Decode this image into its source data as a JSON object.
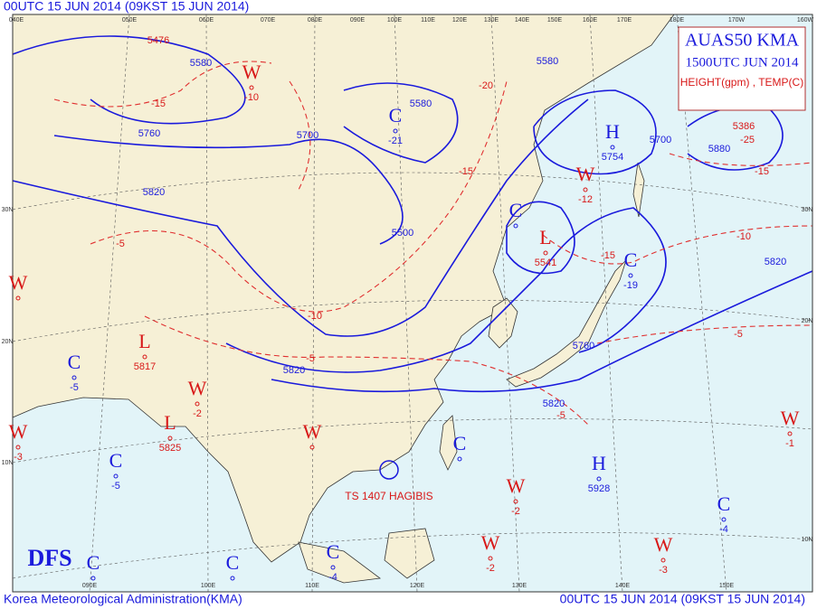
{
  "header": {
    "time": "00UTC 15 JUN 2014 (09KST 15 JUN 2014)"
  },
  "title_box": {
    "title": "AUAS50 KMA",
    "valid": "1500UTC JUN 2014",
    "fields": "HEIGHT(gpm) , TEMP(C)"
  },
  "footer": {
    "agency": "Korea Meteorological Administration(KMA)",
    "time": "00UTC 15 JUN 2014 (09KST 15 JUN 2014)"
  },
  "logo": "DFS",
  "typhoon": "TS 1407 HAGIBIS",
  "centers": [
    {
      "label": "W",
      "value": "-10"
    },
    {
      "label": "C",
      "value": "-21"
    },
    {
      "label": "H",
      "value": "5754"
    },
    {
      "label": "W",
      "value": "-12"
    },
    {
      "label": "C"
    },
    {
      "label": "L",
      "value": "5541"
    },
    {
      "label": "C",
      "value": "-19"
    },
    {
      "label": "L",
      "value": "5817"
    },
    {
      "label": "C",
      "value": "-5"
    },
    {
      "label": "W",
      "value": "-2"
    },
    {
      "label": "L",
      "value": "5825"
    },
    {
      "label": "W",
      "value": "-3"
    },
    {
      "label": "W"
    },
    {
      "label": "C",
      "value": "-5"
    },
    {
      "label": "C"
    },
    {
      "label": "H",
      "value": "5928"
    },
    {
      "label": "W",
      "value": "-2"
    },
    {
      "label": "C",
      "value": "-4"
    },
    {
      "label": "W",
      "value": "-1"
    },
    {
      "label": "W",
      "value": "-2"
    },
    {
      "label": "C",
      "value": "-4"
    },
    {
      "label": "W",
      "value": "-3"
    },
    {
      "label": "W"
    },
    {
      "label": "C"
    },
    {
      "label": "C"
    }
  ],
  "height_contour_labels": [
    "5476",
    "5580",
    "5760",
    "5820",
    "5700",
    "5580",
    "5580",
    "5700",
    "5880",
    "5500",
    "5820",
    "5760",
    "5820",
    "5820",
    "5386"
  ],
  "temp_contour_labels": [
    "-15",
    "-15",
    "-10",
    "-5",
    "-5",
    "-10",
    "-5",
    "-5",
    "-15",
    "-25",
    "-20",
    "-15"
  ],
  "longitude_labels_top": [
    "040E",
    "050E",
    "060E",
    "070E",
    "080E",
    "090E",
    "100E",
    "110E",
    "120E",
    "130E",
    "140E",
    "150E",
    "160E",
    "170E",
    "180E",
    "170W",
    "160W"
  ],
  "longitude_labels_bottom": [
    "090E",
    "100E",
    "110E",
    "120E",
    "130E",
    "140E",
    "150E"
  ],
  "latitude_labels": [
    "30N",
    "20N",
    "10N",
    "30N",
    "20N",
    "10N"
  ]
}
